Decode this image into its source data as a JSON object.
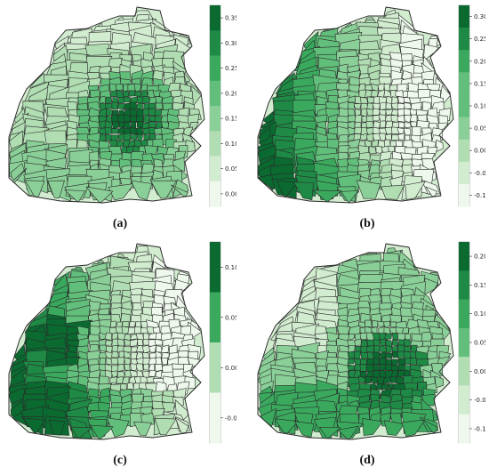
{
  "figure": {
    "panels": [
      {
        "id": "a",
        "caption": "(a)",
        "colorbar": {
          "ticks": [
            "0.35",
            "0.30",
            "0.25",
            "0.20",
            "0.15",
            "0.10",
            "0.05",
            "0.00"
          ]
        }
      },
      {
        "id": "b",
        "caption": "(b)",
        "colorbar": {
          "ticks": [
            "0.30",
            "0.25",
            "0.20",
            "0.15",
            "0.10",
            "0.05",
            "0.00",
            "-0.05",
            "-0.10"
          ]
        }
      },
      {
        "id": "c",
        "caption": "(c)",
        "colorbar": {
          "ticks": [
            "0.10",
            "0.05",
            "0.00",
            "-0.05"
          ]
        }
      },
      {
        "id": "d",
        "caption": "(d)",
        "colorbar": {
          "ticks": [
            "0.20",
            "0.15",
            "0.10",
            "0.05",
            "0.00",
            "-0.05",
            "-0.10"
          ]
        }
      }
    ],
    "palette": [
      "#eef8ec",
      "#d2ecd0",
      "#b0ddb2",
      "#8acf97",
      "#62bf7b",
      "#3aa95e",
      "#1e8a45",
      "#0a6a30"
    ]
  }
}
